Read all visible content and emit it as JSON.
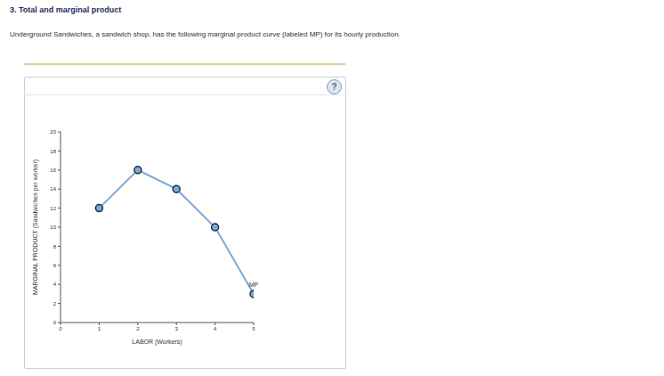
{
  "chart_data": {
    "type": "line",
    "title": "3. Total and marginal product",
    "subtitle": "Underground Sandwiches, a sandwich shop, has the following marginal product curve (labeled MP) for its hourly production.",
    "annotations": [
      "?"
    ],
    "x_label": "LABOR (Workers)",
    "y_label": "MARGINAL PRODUCT (Sandwiches per worker)",
    "x": [
      1,
      2,
      3,
      4,
      5
    ],
    "series": [
      {
        "name": "MP",
        "color": "#7ea9d6",
        "marker": "circle",
        "values": [
          12,
          16,
          14,
          10,
          3
        ]
      }
    ],
    "xlim": [
      0,
      5
    ],
    "xticks": [
      0,
      1,
      2,
      3,
      4,
      5
    ],
    "ylim": [
      0,
      20
    ],
    "yticks": [
      0,
      2,
      4,
      6,
      8,
      10,
      12,
      14,
      16,
      18,
      20
    ],
    "grid": false
  }
}
